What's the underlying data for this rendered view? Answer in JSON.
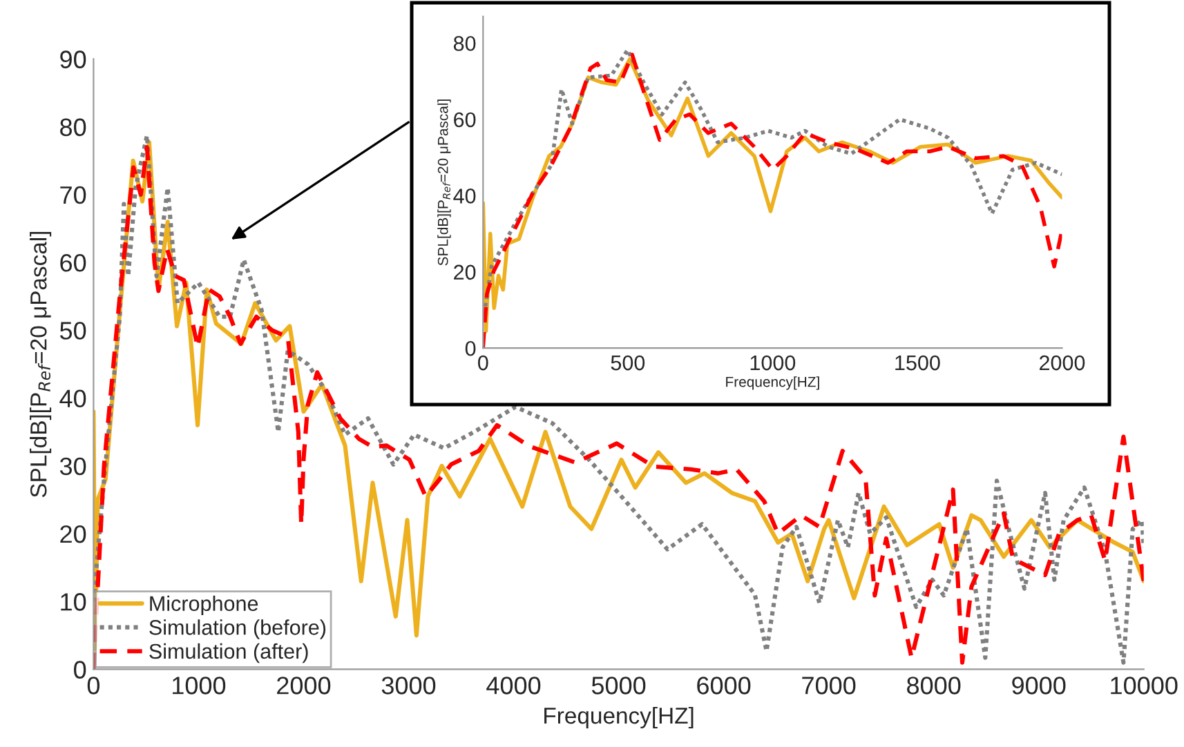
{
  "chart_data": [
    {
      "type": "line",
      "xlabel": "Frequency[HZ]",
      "ylabel": "SPL[dB][P$_{Ref}$=20 μPascal]",
      "xlim": [
        0,
        10000
      ],
      "xticks": [
        0,
        1000,
        2000,
        3000,
        4000,
        5000,
        6000,
        7000,
        8000,
        9000,
        10000
      ],
      "ylim": [
        0,
        90
      ],
      "yticks": [
        0,
        10,
        20,
        30,
        40,
        50,
        60,
        70,
        80,
        90
      ],
      "legend": "bottom left",
      "series": [
        {
          "name": "Microphone",
          "color": "#edb120",
          "line_style": "solid",
          "x": [
            0,
            15,
            40,
            114,
            246,
            377,
            465,
            530,
            618,
            706,
            794,
            882,
            991,
            1079,
            1167,
            1408,
            1539,
            1737,
            1868,
            2000,
            2175,
            2395,
            2548,
            2658,
            2877,
            2987,
            3075,
            3184,
            3316,
            3487,
            3776,
            4083,
            4303,
            4539,
            4741,
            5026,
            5158,
            5378,
            5641,
            5816,
            6079,
            6298,
            6517,
            6649,
            6800,
            6957,
            7000,
            7241,
            7526,
            7746,
            8053,
            8184,
            8360,
            8447,
            8667,
            8930,
            9105,
            9368,
            9719,
            9895,
            10000
          ],
          "values": [
            38,
            3,
            25,
            28,
            52,
            75,
            69,
            77.7,
            56,
            66,
            50.6,
            57,
            36,
            56,
            51,
            48,
            54,
            48.5,
            50.6,
            38,
            42,
            33,
            13,
            27.5,
            7.8,
            22,
            5,
            25.5,
            30,
            25.5,
            34,
            24,
            35,
            24,
            20.7,
            30.9,
            26.8,
            32,
            27.5,
            28.9,
            26,
            24.8,
            18.7,
            20,
            13,
            20.7,
            22,
            10.5,
            24,
            18.3,
            21.4,
            15,
            22.7,
            22,
            16.6,
            22,
            18,
            22,
            18.7,
            17.3,
            13
          ]
        },
        {
          "name": "Simulation (before)",
          "color": "#808080",
          "line_style": "dotted",
          "x": [
            0,
            100,
            250,
            289,
            330,
            400,
            509,
            600,
            706,
            800,
            1000,
            1200,
            1300,
            1430,
            1600,
            1759,
            1850,
            2040,
            2215,
            2395,
            2614,
            2855,
            3053,
            3338,
            3623,
            4018,
            4368,
            4719,
            5026,
            5465,
            5794,
            6123,
            6298,
            6408,
            6561,
            6693,
            6912,
            7088,
            7183,
            7285,
            7395,
            7548,
            7833,
            7987,
            8096,
            8316,
            8491,
            8601,
            8711,
            8864,
            9061,
            9149,
            9237,
            9434,
            9632,
            9807,
            9895,
            9983,
            10000
          ],
          "values": [
            10,
            28,
            52,
            68.6,
            58,
            71,
            78.7,
            58,
            71,
            54,
            57,
            52,
            52,
            60.4,
            53,
            35,
            47,
            45,
            41,
            34.6,
            37,
            30.2,
            34.6,
            32.6,
            35,
            38.7,
            36.3,
            30.9,
            25.5,
            17.7,
            21.4,
            14.6,
            11,
            2.7,
            18,
            21,
            9.8,
            22,
            18,
            26,
            20,
            22.4,
            9.2,
            13.2,
            10.9,
            20.7,
            1.7,
            27.8,
            20.9,
            11.9,
            26,
            13.2,
            22,
            26.8,
            17.3,
            1,
            20.7,
            22,
            18
          ]
        },
        {
          "name": "Simulation (after)",
          "color": "#ff0000",
          "line_style": "dashed",
          "x": [
            0,
            100,
            250,
            380,
            450,
            509,
            580,
            618,
            700,
            780,
            860,
            991,
            1100,
            1200,
            1300,
            1400,
            1550,
            1700,
            1850,
            1950,
            1978,
            2000,
            2040,
            2130,
            2350,
            2526,
            2658,
            2790,
            3009,
            3162,
            3294,
            3404,
            3667,
            3842,
            4149,
            4588,
            4982,
            5333,
            5684,
            5947,
            6123,
            6386,
            6517,
            6737,
            6912,
            7132,
            7351,
            7439,
            7548,
            7789,
            8184,
            8272,
            8360,
            8667,
            8755,
            9061,
            9193,
            9368,
            9500,
            9632,
            9807,
            10000
          ],
          "values": [
            0,
            30,
            55,
            74,
            70,
            77,
            60,
            55.8,
            62,
            58,
            57.4,
            47.5,
            56,
            55,
            52,
            48,
            52,
            50,
            49,
            35,
            21.4,
            31,
            39,
            43.8,
            37,
            34,
            32.8,
            33,
            30.9,
            25.5,
            28,
            30.2,
            32.2,
            36,
            32.9,
            30.5,
            33.3,
            29.9,
            29.5,
            28.9,
            29.5,
            24.8,
            20,
            22.7,
            21,
            32.2,
            28.2,
            10.9,
            19.3,
            1.7,
            26.5,
            1,
            12.2,
            23,
            16.3,
            13.9,
            20,
            22,
            22.7,
            16,
            34.3,
            13
          ]
        }
      ]
    },
    {
      "type": "line",
      "xlabel": "Frequency[HZ]",
      "ylabel": "SPL[dB][P$_{Ref}$=20 μPascal]",
      "xlim": [
        0,
        2000
      ],
      "xticks": [
        0,
        500,
        1000,
        1500,
        2000
      ],
      "ylim": [
        0,
        87
      ],
      "yticks": [
        0,
        20,
        40,
        60,
        80
      ],
      "series": [
        {
          "color": "#edb120",
          "line_style": "solid",
          "x": [
            0,
            10,
            25,
            38,
            53,
            69,
            84,
            124,
            172,
            228,
            268,
            308,
            363,
            411,
            459,
            507,
            571,
            650,
            706,
            778,
            857,
            937,
            993,
            1049,
            1112,
            1160,
            1240,
            1335,
            1415,
            1511,
            1606,
            1702,
            1814,
            1893,
            1957,
            2000
          ],
          "values": [
            38,
            4.5,
            30,
            10.5,
            19,
            15.3,
            27.4,
            28.6,
            39.5,
            50.4,
            52.8,
            58.9,
            71,
            69.7,
            69.1,
            75.8,
            64.9,
            55.8,
            65.5,
            50.4,
            56.4,
            50.4,
            35.9,
            51.6,
            55.2,
            51.6,
            54,
            51.6,
            48.6,
            52.8,
            53.4,
            48.6,
            50.4,
            49.2,
            43.1,
            39.5
          ]
        },
        {
          "color": "#808080",
          "line_style": "dotted",
          "x": [
            0,
            29,
            108,
            172,
            236,
            271,
            308,
            363,
            443,
            499,
            555,
            618,
            698,
            754,
            810,
            905,
            985,
            1065,
            1112,
            1192,
            1272,
            1351,
            1439,
            1543,
            1606,
            1686,
            1758,
            1829,
            1909,
            2000
          ],
          "values": [
            6.9,
            21.4,
            32.3,
            40.7,
            48,
            67.9,
            58.9,
            71,
            71.5,
            78.2,
            69.7,
            61.3,
            69.7,
            62.5,
            54,
            55.2,
            57,
            55.2,
            57,
            52.8,
            51,
            55.2,
            60,
            57.6,
            55.2,
            48,
            35.3,
            46.8,
            48.6,
            45.6
          ]
        },
        {
          "color": "#ff0000",
          "line_style": "dashed",
          "x": [
            0,
            13,
            37,
            108,
            172,
            236,
            300,
            371,
            395,
            427,
            475,
            515,
            555,
            610,
            666,
            714,
            778,
            857,
            937,
            1001,
            1049,
            1112,
            1192,
            1288,
            1399,
            1463,
            1543,
            1606,
            1702,
            1798,
            1861,
            1925,
            1973,
            2000
          ],
          "values": [
            0.2,
            14.1,
            20.2,
            31,
            40.7,
            48,
            57.6,
            73.4,
            74.6,
            70.3,
            69.7,
            77,
            67.3,
            54.6,
            60,
            61.3,
            56.4,
            58.9,
            52.8,
            46.8,
            50.4,
            56.4,
            54,
            52.2,
            48.6,
            51.6,
            51.6,
            52.8,
            49.8,
            50.4,
            48,
            37.1,
            21.4,
            31
          ]
        }
      ]
    }
  ]
}
